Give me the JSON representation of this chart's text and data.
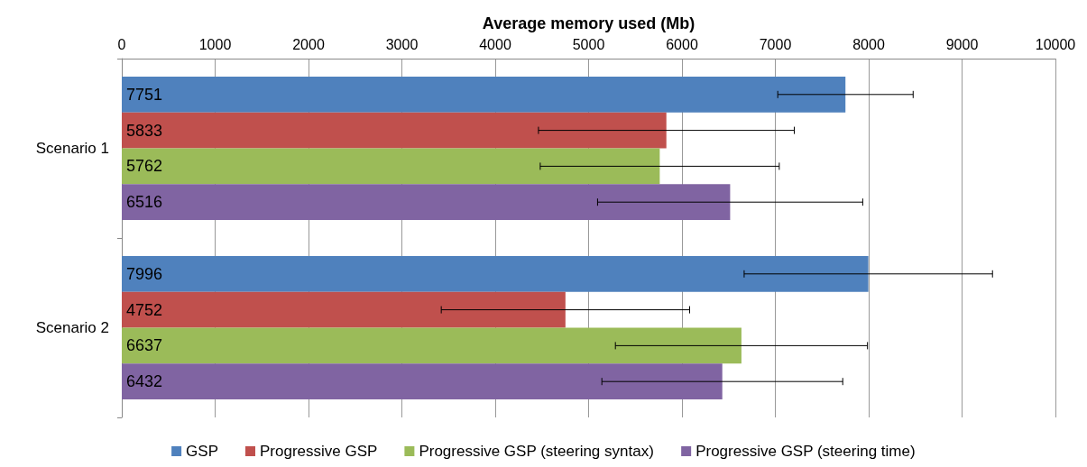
{
  "chart_data": {
    "type": "bar",
    "orientation": "horizontal",
    "xlabel": "Average memory used (Mb)",
    "categories": [
      "Scenario 1",
      "Scenario 2"
    ],
    "series": [
      {
        "name": "GSP",
        "color": "#4f81bd",
        "values": [
          7751,
          7996
        ],
        "errors": [
          725,
          1330
        ]
      },
      {
        "name": "Progressive GSP",
        "color": "#c0504d",
        "values": [
          5833,
          4752
        ],
        "errors": [
          1370,
          1330
        ]
      },
      {
        "name": "Progressive GSP (steering syntax)",
        "color": "#9bbb59",
        "values": [
          5762,
          6637
        ],
        "errors": [
          1280,
          1350
        ]
      },
      {
        "name": "Progressive GSP (steering time)",
        "color": "#8064a2",
        "values": [
          6516,
          6432
        ],
        "errors": [
          1420,
          1290
        ]
      }
    ],
    "xlim": [
      0,
      10000
    ],
    "xticks": [
      0,
      1000,
      2000,
      3000,
      4000,
      5000,
      6000,
      7000,
      8000,
      9000,
      10000
    ],
    "grid": "x",
    "legend": "bottom",
    "data_labels": true
  }
}
